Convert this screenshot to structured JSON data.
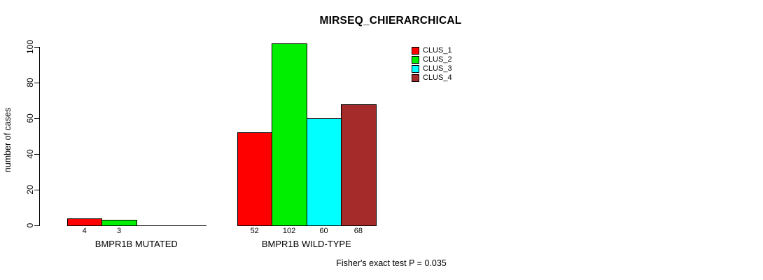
{
  "title": "MIRSEQ_CHIERARCHICAL",
  "footer": "Fisher's exact test P = 0.035",
  "y_axis": {
    "label": "number of cases"
  },
  "chart_data": {
    "type": "bar",
    "title": "MIRSEQ_CHIERARCHICAL",
    "xlabel": "",
    "ylabel": "number of cases",
    "ylim": [
      0,
      105
    ],
    "yticks": [
      0,
      20,
      40,
      60,
      80,
      100
    ],
    "grid": false,
    "legend_position": "top-right",
    "categories": [
      "BMPR1B MUTATED",
      "BMPR1B WILD-TYPE"
    ],
    "series": [
      {
        "name": "CLUS_1",
        "color": "#FF0000",
        "values": [
          4,
          52
        ]
      },
      {
        "name": "CLUS_2",
        "color": "#00EE00",
        "values": [
          3,
          102
        ]
      },
      {
        "name": "CLUS_3",
        "color": "#00FFFF",
        "values": [
          0,
          60
        ]
      },
      {
        "name": "CLUS_4",
        "color": "#A52A2A",
        "values": [
          0,
          68
        ]
      }
    ],
    "bar_value_labels": [
      [
        "4",
        "3"
      ],
      [
        "52",
        "102",
        "60",
        "68"
      ]
    ],
    "annotation": "Fisher's exact test P = 0.035"
  }
}
